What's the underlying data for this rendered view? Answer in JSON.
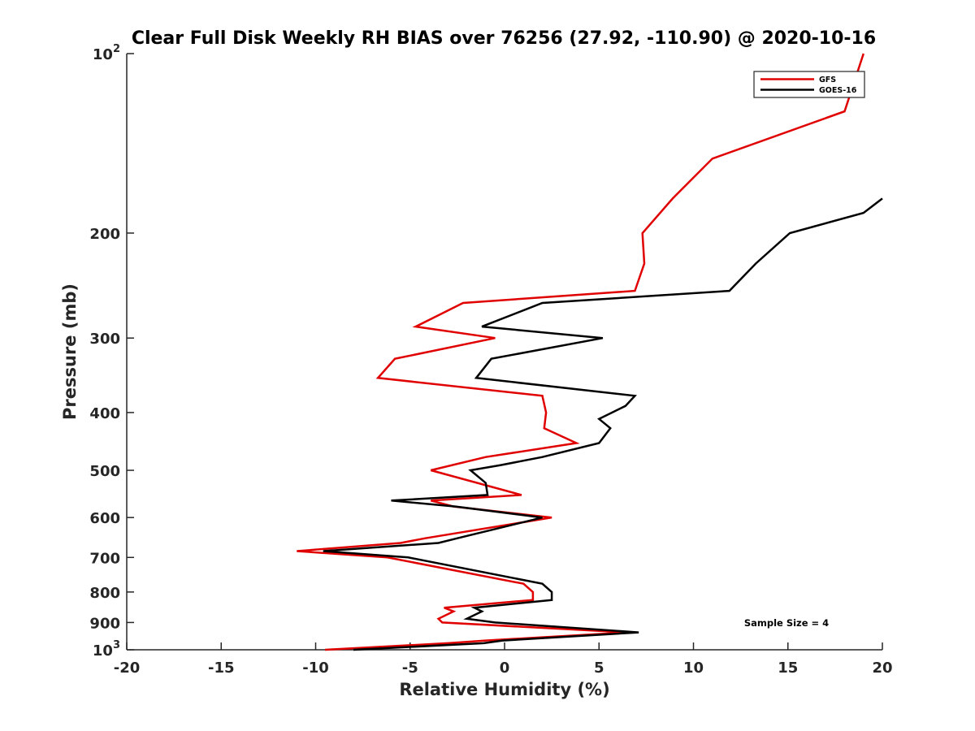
{
  "chart_data": {
    "type": "line",
    "title": "Clear Full Disk Weekly RH BIAS over 76256 (27.92, -110.90) @ 2020-10-16",
    "xlabel": "Relative Humidity (%)",
    "ylabel": "Pressure (mb)",
    "xlim": [
      -20,
      20
    ],
    "ylim": [
      100,
      1000
    ],
    "yscale": "log",
    "y_reversed": true,
    "grid": false,
    "x_ticks": [
      -20,
      -15,
      -10,
      -5,
      0,
      5,
      10,
      15,
      20
    ],
    "x_tick_labels": [
      "-20",
      "-15",
      "-10",
      "-5",
      "0",
      "5",
      "10",
      "15",
      "20"
    ],
    "y_ticks": [
      100,
      200,
      300,
      400,
      500,
      600,
      700,
      800,
      900,
      1000
    ],
    "y_tick_labels": [
      {
        "base": "10",
        "exp": "2"
      },
      {
        "base": "200",
        "exp": ""
      },
      {
        "base": "300",
        "exp": ""
      },
      {
        "base": "400",
        "exp": ""
      },
      {
        "base": "500",
        "exp": ""
      },
      {
        "base": "600",
        "exp": ""
      },
      {
        "base": "700",
        "exp": ""
      },
      {
        "base": "800",
        "exp": ""
      },
      {
        "base": "900",
        "exp": ""
      },
      {
        "base": "10",
        "exp": "3"
      }
    ],
    "legend_position": "top-right",
    "annotation": "Sample Size = 4",
    "series": [
      {
        "name": "GFS",
        "color": "#e00000",
        "points": [
          [
            19.0,
            100
          ],
          [
            18.0,
            125
          ],
          [
            11.0,
            150
          ],
          [
            8.9,
            175
          ],
          [
            7.3,
            200
          ],
          [
            7.4,
            225
          ],
          [
            6.9,
            250
          ],
          [
            -2.2,
            262
          ],
          [
            -4.7,
            287
          ],
          [
            -0.5,
            300
          ],
          [
            -5.8,
            325
          ],
          [
            -6.7,
            350
          ],
          [
            2.0,
            375
          ],
          [
            2.2,
            400
          ],
          [
            2.1,
            425
          ],
          [
            3.8,
            450
          ],
          [
            -1.0,
            475
          ],
          [
            -3.9,
            500
          ],
          [
            0.9,
            550
          ],
          [
            -3.9,
            562
          ],
          [
            -2.7,
            575
          ],
          [
            2.5,
            600
          ],
          [
            -4.2,
            650
          ],
          [
            -5.5,
            662
          ],
          [
            -11.0,
            683
          ],
          [
            -6.2,
            700
          ],
          [
            1.0,
            775
          ],
          [
            1.5,
            800
          ],
          [
            1.5,
            825
          ],
          [
            -3.2,
            850
          ],
          [
            -2.7,
            862
          ],
          [
            -3.5,
            887
          ],
          [
            -3.3,
            900
          ],
          [
            6.5,
            935
          ],
          [
            -1.0,
            965
          ],
          [
            -3.0,
            975
          ],
          [
            -9.5,
            1000
          ]
        ]
      },
      {
        "name": "GOES-16",
        "color": "#000000",
        "points": [
          [
            20.0,
            175
          ],
          [
            19.0,
            185
          ],
          [
            15.1,
            200
          ],
          [
            13.3,
            225
          ],
          [
            11.9,
            250
          ],
          [
            2.0,
            262
          ],
          [
            -1.2,
            287
          ],
          [
            5.2,
            300
          ],
          [
            -0.7,
            325
          ],
          [
            -1.5,
            350
          ],
          [
            6.9,
            375
          ],
          [
            6.4,
            390
          ],
          [
            5.0,
            410
          ],
          [
            5.6,
            425
          ],
          [
            5.0,
            450
          ],
          [
            2.0,
            475
          ],
          [
            -0.2,
            490
          ],
          [
            -1.8,
            500
          ],
          [
            -1.0,
            525
          ],
          [
            -0.9,
            550
          ],
          [
            -6.0,
            562
          ],
          [
            -2.6,
            575
          ],
          [
            2.0,
            600
          ],
          [
            -2.5,
            650
          ],
          [
            -3.5,
            662
          ],
          [
            -9.6,
            683
          ],
          [
            -5.1,
            700
          ],
          [
            2.0,
            775
          ],
          [
            2.5,
            800
          ],
          [
            2.5,
            825
          ],
          [
            -1.6,
            850
          ],
          [
            -1.2,
            862
          ],
          [
            -2.0,
            887
          ],
          [
            -0.5,
            900
          ],
          [
            7.1,
            935
          ],
          [
            -0.1,
            965
          ],
          [
            -1.1,
            975
          ],
          [
            -8.0,
            1000
          ]
        ]
      }
    ]
  }
}
